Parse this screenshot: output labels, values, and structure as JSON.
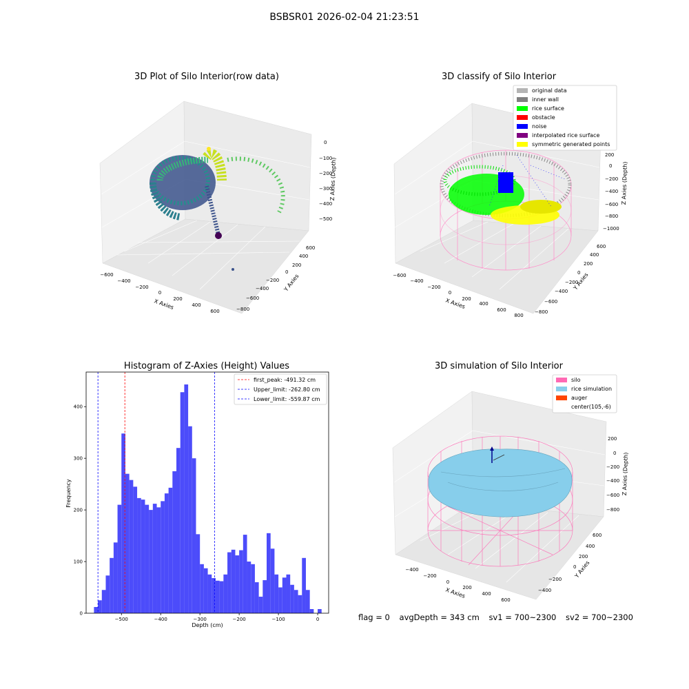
{
  "figure_title": "BSBSR01 2026-02-04 21:23:51",
  "chart_data": [
    {
      "type": "scatter",
      "title": "3D Plot of Silo Interior(row data)",
      "xlabel": "X Axies",
      "ylabel": "Y Axies",
      "zlabel": "Z Axies (Depth)",
      "x_ticks": [
        "−600",
        "−400",
        "−200",
        "0",
        "200",
        "400",
        "600"
      ],
      "y_ticks": [
        "−800",
        "−600",
        "−400",
        "−200",
        "0",
        "200",
        "400",
        "600"
      ],
      "z_ticks": [
        "0",
        "−100",
        "−200",
        "−300",
        "−400",
        "−500"
      ],
      "xlim": [
        -650,
        700
      ],
      "ylim": [
        -850,
        650
      ],
      "zlim": [
        -560,
        10
      ],
      "colormap": "viridis",
      "point_groups": [
        {
          "x": [
            -500,
            0,
            250,
            550
          ],
          "y": [
            -300,
            300,
            200,
            -200
          ],
          "z": [
            -300,
            -250,
            -150,
            -300
          ]
        }
      ]
    },
    {
      "type": "scatter",
      "title": "3D classify of Silo Interior",
      "xlabel": "X Axies",
      "ylabel": "Y Axies",
      "zlabel": "Z Axies (Depth)",
      "x_ticks": [
        "−600",
        "−400",
        "−200",
        "0",
        "200",
        "400",
        "600",
        "800"
      ],
      "y_ticks": [
        "−800",
        "−600",
        "−400",
        "−200",
        "0",
        "200",
        "400",
        "600"
      ],
      "z_ticks": [
        "200",
        "0",
        "−200",
        "−400",
        "−600",
        "−800",
        "−1000"
      ],
      "xlim": [
        -650,
        850
      ],
      "ylim": [
        -850,
        650
      ],
      "zlim": [
        -1050,
        250
      ],
      "legend_location": "upper right",
      "legend": [
        {
          "label": "original data",
          "color": "#b4b4b4"
        },
        {
          "label": "inner wall",
          "color": "#808080"
        },
        {
          "label": "rice surface",
          "color": "#00ff00"
        },
        {
          "label": "obstacle",
          "color": "#ff0000"
        },
        {
          "label": "noise",
          "color": "#0000ff"
        },
        {
          "label": "interpolated rice surface",
          "color": "#800080"
        },
        {
          "label": "symmetric generated points",
          "color": "#ffff00"
        }
      ]
    },
    {
      "type": "bar",
      "title": "Histogram of Z-Axies (Height) Values",
      "xlabel": "Depth (cm)",
      "ylabel": "Frequency",
      "x_ticks": [
        "−500",
        "−400",
        "−300",
        "−200",
        "−100",
        "0"
      ],
      "y_ticks": [
        "0",
        "100",
        "200",
        "300",
        "400"
      ],
      "xlim": [
        -590,
        28
      ],
      "ylim": [
        0,
        467
      ],
      "bin_width": 10,
      "bar_color": "#4c4cfa",
      "bins_left": [
        -570,
        -560,
        -550,
        -540,
        -530,
        -520,
        -510,
        -500,
        -490,
        -480,
        -470,
        -460,
        -450,
        -440,
        -430,
        -420,
        -410,
        -400,
        -390,
        -380,
        -370,
        -360,
        -350,
        -340,
        -330,
        -320,
        -310,
        -300,
        -290,
        -280,
        -270,
        -260,
        -250,
        -240,
        -230,
        -220,
        -210,
        -200,
        -190,
        -180,
        -170,
        -160,
        -150,
        -140,
        -130,
        -120,
        -110,
        -100,
        -90,
        -80,
        -70,
        -60,
        -50,
        -40,
        -30,
        -20,
        -10,
        0,
        10
      ],
      "counts": [
        12,
        25,
        45,
        73,
        107,
        137,
        210,
        348,
        270,
        258,
        245,
        223,
        220,
        210,
        200,
        212,
        205,
        217,
        232,
        243,
        275,
        320,
        428,
        443,
        362,
        300,
        153,
        95,
        87,
        75,
        68,
        63,
        62,
        75,
        118,
        123,
        112,
        122,
        152,
        100,
        95,
        60,
        32,
        64,
        155,
        125,
        75,
        50,
        69,
        75,
        55,
        45,
        35,
        107,
        45,
        8,
        0,
        8,
        0
      ],
      "vlines": [
        {
          "label": "first_peak: -491.32 cm",
          "x": -491.32,
          "color": "#ff0000",
          "style": "dashed"
        },
        {
          "label": "Upper_limit: -262.80 cm",
          "x": -262.8,
          "color": "#0000ff",
          "style": "dashed"
        },
        {
          "label": "Lower_limit: -559.87 cm",
          "x": -559.87,
          "color": "#0000ff",
          "style": "dashed"
        }
      ],
      "legend_location": "upper right"
    },
    {
      "type": "surface",
      "title": "3D simulation of Silo Interior",
      "xlabel": "X Axies",
      "ylabel": "Y Axies",
      "zlabel": "Z Axies (Depth)",
      "x_ticks": [
        "−400",
        "−200",
        "0",
        "200",
        "400",
        "600"
      ],
      "y_ticks": [
        "−400",
        "−200",
        "0",
        "200",
        "400",
        "600"
      ],
      "z_ticks": [
        "200",
        "0",
        "−200",
        "−400",
        "−600",
        "−800"
      ],
      "xlim": [
        -500,
        700
      ],
      "ylim": [
        -500,
        700
      ],
      "zlim": [
        -1000,
        300
      ],
      "legend_location": "upper right",
      "legend": [
        {
          "label": "silo",
          "color": "#ff69b4"
        },
        {
          "label": "rice simulation",
          "color": "#87ceeb"
        },
        {
          "label": "auger",
          "color": "#ff4500"
        },
        {
          "label": "center(105,-6)",
          "color": "none"
        }
      ]
    }
  ],
  "footer": {
    "flag": "flag = 0",
    "avg_depth": "avgDepth = 343 cm",
    "sv1": "sv1 = 700~2300",
    "sv2": "sv2 = 700~2300"
  }
}
